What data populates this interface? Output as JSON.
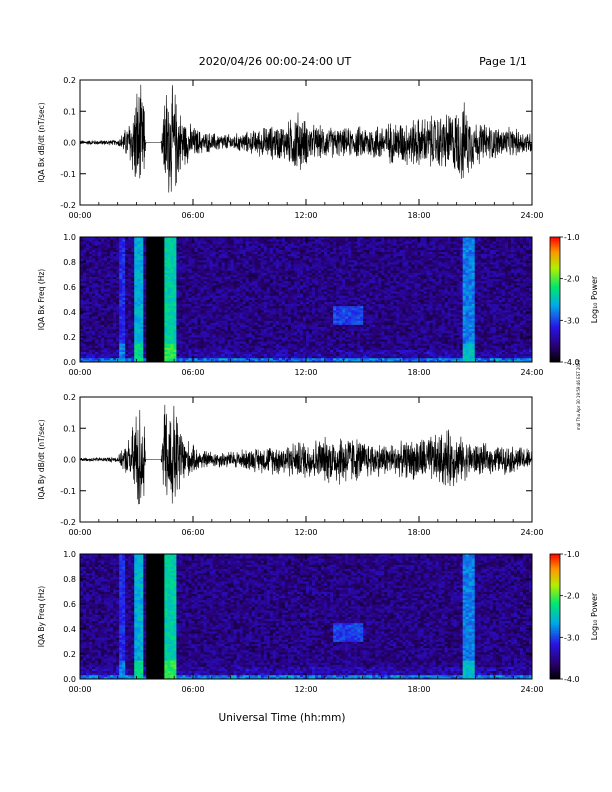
{
  "header": {
    "title": "2020/04/26  00:00-24:00 UT",
    "page": "Page 1/1"
  },
  "footer": {
    "xlabel": "Universal Time (hh:mm)"
  },
  "stamp": "mal Thu Apr 30 19:59:46 EST 2020",
  "colorbar": {
    "label": "Log₁₀ Power",
    "tick_labels": [
      "-1.0",
      "-2.0",
      "-3.0",
      "-4.0"
    ]
  },
  "chart_data": [
    {
      "type": "line",
      "id": "bx-timeseries",
      "ylabel": "IQA Bx dB/dt (nT/sec)",
      "xlabel": "",
      "x_unit": "hours UT",
      "xlim": [
        0,
        24
      ],
      "ylim": [
        -0.2,
        0.2
      ],
      "x_tick_labels": [
        "00:00",
        "06:00",
        "12:00",
        "18:00",
        "24:00"
      ],
      "y_tick_labels": [
        "0.2",
        "0.1",
        "0.0",
        "-0.1",
        "-0.2"
      ],
      "x_ticks": [
        0,
        6,
        12,
        18,
        24
      ],
      "y_ticks": [
        0.2,
        0.1,
        0.0,
        -0.1,
        -0.2
      ],
      "envelope": {
        "x": [
          0,
          2.0,
          2.2,
          2.5,
          2.8,
          3.0,
          3.2,
          3.4,
          3.5,
          3.8,
          4.3,
          4.5,
          4.8,
          5.0,
          5.3,
          5.6,
          6.0,
          6.5,
          7.0,
          8.0,
          9.0,
          10.0,
          11.0,
          11.5,
          12.0,
          12.5,
          13.0,
          14.0,
          15.0,
          16.0,
          17.0,
          18.0,
          19.0,
          20.0,
          20.3,
          20.6,
          21.0,
          22.0,
          23.0,
          24.0
        ],
        "amp": [
          0.008,
          0.01,
          0.03,
          0.06,
          0.12,
          0.2,
          0.2,
          0.15,
          0.0,
          0.0,
          0.0,
          0.2,
          0.2,
          0.2,
          0.12,
          0.08,
          0.06,
          0.04,
          0.035,
          0.03,
          0.04,
          0.06,
          0.07,
          0.12,
          0.08,
          0.06,
          0.06,
          0.05,
          0.06,
          0.07,
          0.08,
          0.09,
          0.1,
          0.12,
          0.15,
          0.12,
          0.08,
          0.06,
          0.05,
          0.04
        ]
      }
    },
    {
      "type": "heatmap",
      "id": "bx-spectrogram",
      "ylabel": "IQA Bx Freq (Hz)",
      "xlabel": "",
      "xlim": [
        0,
        24
      ],
      "ylim": [
        0,
        1
      ],
      "x_tick_labels": [
        "00:00",
        "06:00",
        "12:00",
        "18:00",
        "24:00"
      ],
      "y_tick_labels": [
        "1.0",
        "0.8",
        "0.6",
        "0.4",
        "0.2",
        "0.0"
      ],
      "x_ticks": [
        0,
        6,
        12,
        18,
        24
      ],
      "y_ticks": [
        1.0,
        0.8,
        0.6,
        0.4,
        0.2,
        0.0
      ],
      "zlim": [
        -4.0,
        -1.0
      ],
      "gaps": [
        [
          3.5,
          4.4
        ]
      ],
      "features": [
        {
          "x": 2.2,
          "width": 0.15,
          "level": -3.1,
          "fmax": 1.0
        },
        {
          "x": 3.1,
          "width": 0.2,
          "level": -2.6,
          "fmax": 1.0
        },
        {
          "x": 4.8,
          "width": 0.3,
          "level": -2.4,
          "fmax": 1.0
        },
        {
          "x": 20.6,
          "width": 0.3,
          "level": -2.8,
          "fmax": 1.0
        },
        {
          "x": 14.3,
          "width": 0.8,
          "level": -3.0,
          "fmin": 0.3,
          "fmax": 0.45
        }
      ]
    },
    {
      "type": "line",
      "id": "by-timeseries",
      "ylabel": "IQA By dB/dt (nT/sec)",
      "xlabel": "",
      "x_unit": "hours UT",
      "xlim": [
        0,
        24
      ],
      "ylim": [
        -0.2,
        0.2
      ],
      "x_tick_labels": [
        "00:00",
        "06:00",
        "12:00",
        "18:00",
        "24:00"
      ],
      "y_tick_labels": [
        "0.2",
        "0.1",
        "0.0",
        "-0.1",
        "-0.2"
      ],
      "x_ticks": [
        0,
        6,
        12,
        18,
        24
      ],
      "y_ticks": [
        0.2,
        0.1,
        0.0,
        -0.1,
        -0.2
      ],
      "envelope": {
        "x": [
          0,
          2.0,
          2.2,
          2.5,
          2.8,
          3.0,
          3.2,
          3.4,
          3.5,
          3.8,
          4.3,
          4.5,
          4.8,
          5.0,
          5.3,
          5.6,
          6.0,
          6.5,
          7.0,
          8.0,
          9.0,
          10.0,
          11.0,
          12.0,
          13.0,
          14.0,
          15.0,
          16.0,
          17.0,
          18.0,
          19.0,
          19.5,
          20.0,
          20.5,
          21.0,
          22.0,
          23.0,
          24.0
        ],
        "amp": [
          0.006,
          0.01,
          0.03,
          0.06,
          0.12,
          0.2,
          0.2,
          0.18,
          0.0,
          0.0,
          0.0,
          0.2,
          0.2,
          0.2,
          0.14,
          0.08,
          0.05,
          0.035,
          0.03,
          0.03,
          0.04,
          0.05,
          0.06,
          0.07,
          0.08,
          0.1,
          0.07,
          0.06,
          0.06,
          0.08,
          0.09,
          0.11,
          0.09,
          0.07,
          0.06,
          0.05,
          0.05,
          0.04
        ]
      }
    },
    {
      "type": "heatmap",
      "id": "by-spectrogram",
      "ylabel": "IQA By Freq (Hz)",
      "xlabel": "",
      "xlim": [
        0,
        24
      ],
      "ylim": [
        0,
        1
      ],
      "x_tick_labels": [
        "00:00",
        "06:00",
        "12:00",
        "18:00",
        "24:00"
      ],
      "y_tick_labels": [
        "1.0",
        "0.8",
        "0.6",
        "0.4",
        "0.2",
        "0.0"
      ],
      "x_ticks": [
        0,
        6,
        12,
        18,
        24
      ],
      "y_ticks": [
        1.0,
        0.8,
        0.6,
        0.4,
        0.2,
        0.0
      ],
      "zlim": [
        -4.0,
        -1.0
      ],
      "gaps": [
        [
          3.5,
          4.4
        ]
      ],
      "features": [
        {
          "x": 2.2,
          "width": 0.15,
          "level": -3.1,
          "fmax": 1.0
        },
        {
          "x": 3.1,
          "width": 0.2,
          "level": -2.6,
          "fmax": 1.0
        },
        {
          "x": 4.8,
          "width": 0.3,
          "level": -2.4,
          "fmax": 1.0
        },
        {
          "x": 20.6,
          "width": 0.3,
          "level": -2.8,
          "fmax": 1.0
        },
        {
          "x": 14.3,
          "width": 0.8,
          "level": -3.0,
          "fmin": 0.3,
          "fmax": 0.45
        }
      ]
    }
  ]
}
